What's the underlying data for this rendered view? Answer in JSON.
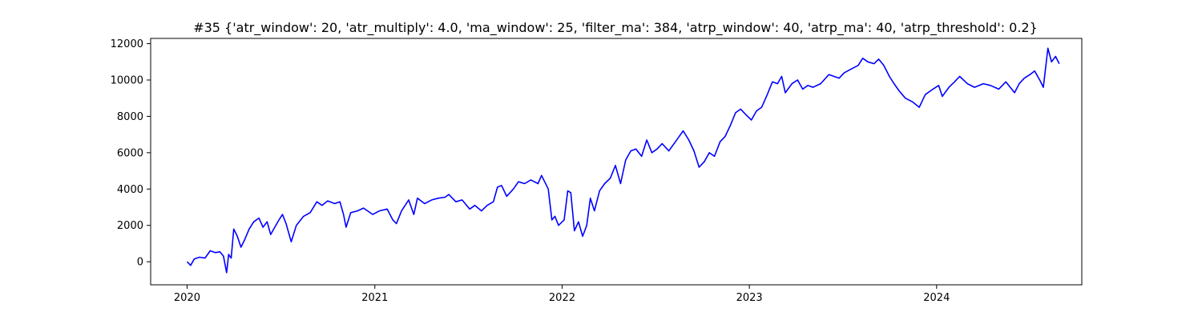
{
  "chart_data": {
    "type": "line",
    "title": "#35 {'atr_window': 20, 'atr_multiply': 4.0, 'ma_window': 25, 'filter_ma': 384, 'atrp_window': 40, 'atrp_ma': 40, 'atrp_threshold': 0.2}",
    "xlabel": "",
    "ylabel": "",
    "xlim": [
      "2019-10-22",
      "2024-10-10"
    ],
    "ylim": [
      -1270,
      12290
    ],
    "grid": false,
    "legend": "none",
    "line_color": "#0000ff",
    "x_ticks": [
      {
        "value": "2020-01-01",
        "label": "2020"
      },
      {
        "value": "2021-01-01",
        "label": "2021"
      },
      {
        "value": "2022-01-01",
        "label": "2022"
      },
      {
        "value": "2023-01-01",
        "label": "2023"
      },
      {
        "value": "2024-01-01",
        "label": "2024"
      }
    ],
    "y_ticks": [
      {
        "value": 0,
        "label": "0"
      },
      {
        "value": 2000,
        "label": "2000"
      },
      {
        "value": 4000,
        "label": "4000"
      },
      {
        "value": 6000,
        "label": "6000"
      },
      {
        "value": 8000,
        "label": "8000"
      },
      {
        "value": 10000,
        "label": "10000"
      },
      {
        "value": 12000,
        "label": "12000"
      }
    ],
    "series": [
      {
        "points": [
          [
            "2020-01-01",
            0
          ],
          [
            "2020-01-08",
            -200
          ],
          [
            "2020-01-15",
            150
          ],
          [
            "2020-01-25",
            250
          ],
          [
            "2020-02-05",
            200
          ],
          [
            "2020-02-15",
            600
          ],
          [
            "2020-02-25",
            500
          ],
          [
            "2020-03-05",
            550
          ],
          [
            "2020-03-12",
            300
          ],
          [
            "2020-03-18",
            -600
          ],
          [
            "2020-03-22",
            400
          ],
          [
            "2020-03-27",
            200
          ],
          [
            "2020-04-01",
            1800
          ],
          [
            "2020-04-08",
            1400
          ],
          [
            "2020-04-15",
            800
          ],
          [
            "2020-04-22",
            1200
          ],
          [
            "2020-05-01",
            1800
          ],
          [
            "2020-05-10",
            2200
          ],
          [
            "2020-05-20",
            2400
          ],
          [
            "2020-05-28",
            1900
          ],
          [
            "2020-06-05",
            2200
          ],
          [
            "2020-06-12",
            1500
          ],
          [
            "2020-06-20",
            1900
          ],
          [
            "2020-06-28",
            2300
          ],
          [
            "2020-07-05",
            2600
          ],
          [
            "2020-07-12",
            2100
          ],
          [
            "2020-07-22",
            1100
          ],
          [
            "2020-08-01",
            2000
          ],
          [
            "2020-08-15",
            2500
          ],
          [
            "2020-08-28",
            2700
          ],
          [
            "2020-09-10",
            3300
          ],
          [
            "2020-09-20",
            3100
          ],
          [
            "2020-10-01",
            3350
          ],
          [
            "2020-10-15",
            3200
          ],
          [
            "2020-10-25",
            3300
          ],
          [
            "2020-11-01",
            2600
          ],
          [
            "2020-11-06",
            1900
          ],
          [
            "2020-11-15",
            2700
          ],
          [
            "2020-11-28",
            2800
          ],
          [
            "2020-12-10",
            2950
          ],
          [
            "2020-12-28",
            2600
          ],
          [
            "2021-01-10",
            2800
          ],
          [
            "2021-01-25",
            2900
          ],
          [
            "2021-02-05",
            2300
          ],
          [
            "2021-02-12",
            2100
          ],
          [
            "2021-02-22",
            2800
          ],
          [
            "2021-03-08",
            3400
          ],
          [
            "2021-03-18",
            2600
          ],
          [
            "2021-03-25",
            3500
          ],
          [
            "2021-04-08",
            3200
          ],
          [
            "2021-04-22",
            3400
          ],
          [
            "2021-05-05",
            3500
          ],
          [
            "2021-05-18",
            3550
          ],
          [
            "2021-05-25",
            3700
          ],
          [
            "2021-06-08",
            3300
          ],
          [
            "2021-06-20",
            3400
          ],
          [
            "2021-07-05",
            2900
          ],
          [
            "2021-07-15",
            3100
          ],
          [
            "2021-07-28",
            2800
          ],
          [
            "2021-08-08",
            3100
          ],
          [
            "2021-08-20",
            3300
          ],
          [
            "2021-08-28",
            4100
          ],
          [
            "2021-09-05",
            4200
          ],
          [
            "2021-09-15",
            3600
          ],
          [
            "2021-09-28",
            4000
          ],
          [
            "2021-10-08",
            4400
          ],
          [
            "2021-10-20",
            4300
          ],
          [
            "2021-11-01",
            4500
          ],
          [
            "2021-11-15",
            4300
          ],
          [
            "2021-11-22",
            4750
          ],
          [
            "2021-12-05",
            4000
          ],
          [
            "2021-12-12",
            2300
          ],
          [
            "2021-12-18",
            2500
          ],
          [
            "2021-12-25",
            2000
          ],
          [
            "2022-01-05",
            2300
          ],
          [
            "2022-01-12",
            3900
          ],
          [
            "2022-01-18",
            3800
          ],
          [
            "2022-01-25",
            1700
          ],
          [
            "2022-02-02",
            2200
          ],
          [
            "2022-02-10",
            1400
          ],
          [
            "2022-02-18",
            2000
          ],
          [
            "2022-02-25",
            3500
          ],
          [
            "2022-03-05",
            2800
          ],
          [
            "2022-03-15",
            3900
          ],
          [
            "2022-03-25",
            4300
          ],
          [
            "2022-04-05",
            4600
          ],
          [
            "2022-04-15",
            5300
          ],
          [
            "2022-04-25",
            4300
          ],
          [
            "2022-05-05",
            5600
          ],
          [
            "2022-05-15",
            6100
          ],
          [
            "2022-05-25",
            6200
          ],
          [
            "2022-06-05",
            5800
          ],
          [
            "2022-06-15",
            6700
          ],
          [
            "2022-06-25",
            6000
          ],
          [
            "2022-07-05",
            6200
          ],
          [
            "2022-07-15",
            6500
          ],
          [
            "2022-07-28",
            6100
          ],
          [
            "2022-08-10",
            6600
          ],
          [
            "2022-08-25",
            7200
          ],
          [
            "2022-09-05",
            6700
          ],
          [
            "2022-09-15",
            6100
          ],
          [
            "2022-09-25",
            5200
          ],
          [
            "2022-10-05",
            5500
          ],
          [
            "2022-10-15",
            6000
          ],
          [
            "2022-10-25",
            5800
          ],
          [
            "2022-11-05",
            6600
          ],
          [
            "2022-11-15",
            6900
          ],
          [
            "2022-11-25",
            7500
          ],
          [
            "2022-12-05",
            8200
          ],
          [
            "2022-12-15",
            8400
          ],
          [
            "2022-12-25",
            8100
          ],
          [
            "2023-01-05",
            7800
          ],
          [
            "2023-01-15",
            8300
          ],
          [
            "2023-01-25",
            8500
          ],
          [
            "2023-02-05",
            9200
          ],
          [
            "2023-02-15",
            9900
          ],
          [
            "2023-02-25",
            9800
          ],
          [
            "2023-03-05",
            10200
          ],
          [
            "2023-03-12",
            9300
          ],
          [
            "2023-03-25",
            9800
          ],
          [
            "2023-04-05",
            10000
          ],
          [
            "2023-04-15",
            9500
          ],
          [
            "2023-04-25",
            9700
          ],
          [
            "2023-05-05",
            9600
          ],
          [
            "2023-05-20",
            9800
          ],
          [
            "2023-06-05",
            10300
          ],
          [
            "2023-06-15",
            10200
          ],
          [
            "2023-06-25",
            10100
          ],
          [
            "2023-07-05",
            10400
          ],
          [
            "2023-07-18",
            10600
          ],
          [
            "2023-08-01",
            10800
          ],
          [
            "2023-08-10",
            11200
          ],
          [
            "2023-08-20",
            11000
          ],
          [
            "2023-09-01",
            10900
          ],
          [
            "2023-09-10",
            11150
          ],
          [
            "2023-09-20",
            10800
          ],
          [
            "2023-10-01",
            10200
          ],
          [
            "2023-10-10",
            9800
          ],
          [
            "2023-10-20",
            9400
          ],
          [
            "2023-11-01",
            9000
          ],
          [
            "2023-11-15",
            8800
          ],
          [
            "2023-11-28",
            8500
          ],
          [
            "2023-12-10",
            9200
          ],
          [
            "2023-12-25",
            9500
          ],
          [
            "2024-01-05",
            9700
          ],
          [
            "2024-01-12",
            9100
          ],
          [
            "2024-01-25",
            9600
          ],
          [
            "2024-02-05",
            9900
          ],
          [
            "2024-02-15",
            10200
          ],
          [
            "2024-03-01",
            9800
          ],
          [
            "2024-03-15",
            9600
          ],
          [
            "2024-04-01",
            9800
          ],
          [
            "2024-04-15",
            9700
          ],
          [
            "2024-05-01",
            9500
          ],
          [
            "2024-05-15",
            9900
          ],
          [
            "2024-06-01",
            9300
          ],
          [
            "2024-06-10",
            9800
          ],
          [
            "2024-06-20",
            10100
          ],
          [
            "2024-07-01",
            10300
          ],
          [
            "2024-07-10",
            10500
          ],
          [
            "2024-07-20",
            10000
          ],
          [
            "2024-07-27",
            9600
          ],
          [
            "2024-08-05",
            11750
          ],
          [
            "2024-08-12",
            11000
          ],
          [
            "2024-08-20",
            11300
          ],
          [
            "2024-08-27",
            10900
          ]
        ]
      }
    ]
  }
}
